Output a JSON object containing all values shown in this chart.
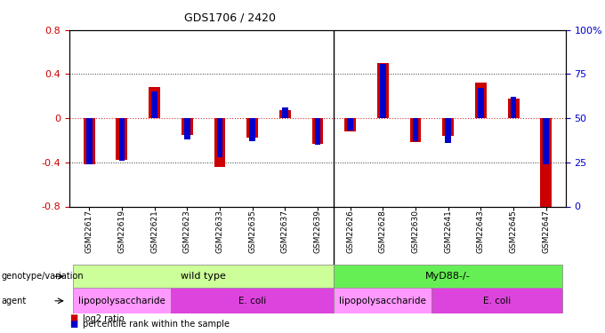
{
  "title": "GDS1706 / 2420",
  "samples": [
    "GSM22617",
    "GSM22619",
    "GSM22621",
    "GSM22623",
    "GSM22633",
    "GSM22635",
    "GSM22637",
    "GSM22639",
    "GSM22626",
    "GSM22628",
    "GSM22630",
    "GSM22641",
    "GSM22643",
    "GSM22645",
    "GSM22647"
  ],
  "log2_ratio": [
    -0.42,
    -0.38,
    0.28,
    -0.15,
    -0.44,
    -0.18,
    0.07,
    -0.23,
    -0.12,
    0.5,
    -0.22,
    -0.16,
    0.32,
    0.18,
    -0.82
  ],
  "percentile_rank": [
    24,
    26,
    65,
    38,
    28,
    37,
    56,
    35,
    43,
    81,
    37,
    36,
    67,
    62,
    24
  ],
  "ylim": [
    -0.8,
    0.8
  ],
  "yticks_left": [
    -0.8,
    -0.4,
    0.0,
    0.4,
    0.8
  ],
  "yticks_right": [
    0,
    25,
    50,
    75,
    100
  ],
  "red_color": "#cc0000",
  "blue_color": "#0000cc",
  "genotype_groups": [
    {
      "label": "wild type",
      "start": 0,
      "end": 7,
      "color": "#ccff99"
    },
    {
      "label": "MyD88-/-",
      "start": 8,
      "end": 14,
      "color": "#66ee55"
    }
  ],
  "agent_groups": [
    {
      "label": "lipopolysaccharide",
      "start": 0,
      "end": 2,
      "color": "#ff99ff"
    },
    {
      "label": "E. coli",
      "start": 3,
      "end": 7,
      "color": "#dd44dd"
    },
    {
      "label": "lipopolysaccharide",
      "start": 8,
      "end": 10,
      "color": "#ff99ff"
    },
    {
      "label": "E. coli",
      "start": 11,
      "end": 14,
      "color": "#dd44dd"
    }
  ],
  "legend_red": "log2 ratio",
  "legend_blue": "percentile rank within the sample",
  "label_genotype": "genotype/variation",
  "label_agent": "agent"
}
